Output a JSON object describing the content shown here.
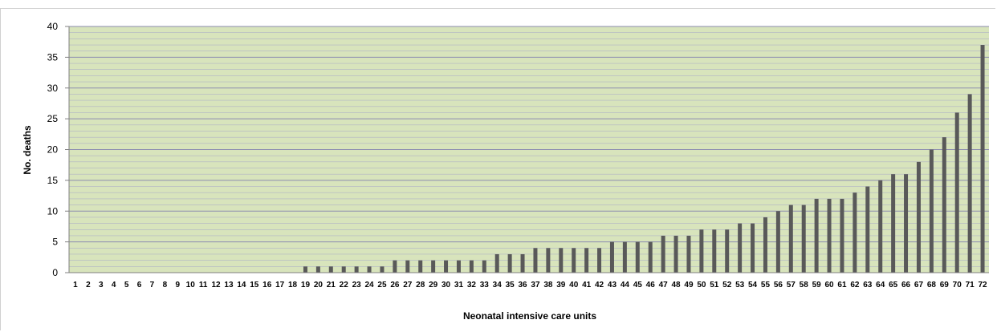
{
  "colors": {
    "plot_bg": "#d8e4bc",
    "gridline": "#a6a6c8",
    "bar": "#595959",
    "axis": "#808080"
  },
  "chart_data": {
    "type": "bar",
    "title": "",
    "xlabel": "Neonatal intensive care units",
    "ylabel": "No. deaths",
    "ylim": [
      0,
      40
    ],
    "yticks": [
      0,
      5,
      10,
      15,
      20,
      25,
      30,
      35,
      40
    ],
    "grid": true,
    "categories": [
      "1",
      "2",
      "3",
      "4",
      "5",
      "6",
      "7",
      "8",
      "9",
      "10",
      "11",
      "12",
      "13",
      "14",
      "15",
      "16",
      "17",
      "18",
      "19",
      "20",
      "21",
      "22",
      "23",
      "24",
      "25",
      "26",
      "27",
      "28",
      "29",
      "30",
      "31",
      "32",
      "33",
      "34",
      "35",
      "36",
      "37",
      "38",
      "39",
      "40",
      "41",
      "42",
      "43",
      "44",
      "45",
      "46",
      "47",
      "48",
      "49",
      "50",
      "51",
      "52",
      "53",
      "54",
      "55",
      "56",
      "57",
      "58",
      "59",
      "60",
      "61",
      "62",
      "63",
      "64",
      "65",
      "66",
      "67",
      "68",
      "69",
      "70",
      "71",
      "72"
    ],
    "values": [
      0,
      0,
      0,
      0,
      0,
      0,
      0,
      0,
      0,
      0,
      0,
      0,
      0,
      0,
      0,
      0,
      0,
      0,
      1,
      1,
      1,
      1,
      1,
      1,
      1,
      2,
      2,
      2,
      2,
      2,
      2,
      2,
      2,
      3,
      3,
      3,
      4,
      4,
      4,
      4,
      4,
      4,
      5,
      5,
      5,
      5,
      6,
      6,
      6,
      7,
      7,
      7,
      8,
      8,
      9,
      10,
      11,
      11,
      12,
      12,
      12,
      13,
      14,
      15,
      16,
      16,
      18,
      20,
      22,
      26,
      29,
      37
    ]
  }
}
